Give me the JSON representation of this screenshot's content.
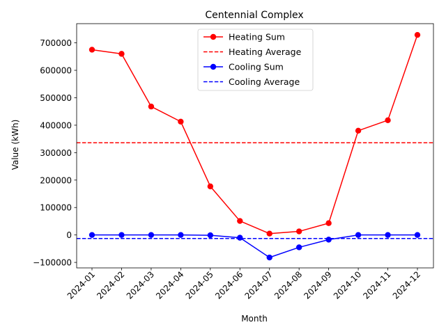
{
  "chart_data": {
    "type": "line",
    "title": "Centennial Complex",
    "xlabel": "Month",
    "ylabel": "Value (kWh)",
    "categories": [
      "2024-01",
      "2024-02",
      "2024-03",
      "2024-04",
      "2024-05",
      "2024-06",
      "2024-07",
      "2024-08",
      "2024-09",
      "2024-10",
      "2024-11",
      "2024-12"
    ],
    "ylim": [
      -120000,
      770000
    ],
    "yticks": [
      -100000,
      0,
      100000,
      200000,
      300000,
      400000,
      500000,
      600000,
      700000
    ],
    "ytick_labels": [
      "−100000",
      "0",
      "100000",
      "200000",
      "300000",
      "400000",
      "500000",
      "600000",
      "700000"
    ],
    "grid": false,
    "legend_position": "top-center",
    "series": [
      {
        "name": "Heating Sum",
        "color": "#ff0000",
        "style": "solid-marker",
        "values": [
          675000,
          660000,
          468000,
          413000,
          177000,
          51000,
          5000,
          13000,
          43000,
          380000,
          418000,
          729000
        ]
      },
      {
        "name": "Heating Average",
        "color": "#ff0000",
        "style": "dashed",
        "value": 336000
      },
      {
        "name": "Cooling Sum",
        "color": "#0000ff",
        "style": "solid-marker",
        "values": [
          0,
          0,
          0,
          0,
          -1000,
          -10000,
          -82000,
          -45000,
          -17000,
          0,
          0,
          0
        ]
      },
      {
        "name": "Cooling Average",
        "color": "#0000ff",
        "style": "dashed",
        "value": -13000
      }
    ]
  }
}
